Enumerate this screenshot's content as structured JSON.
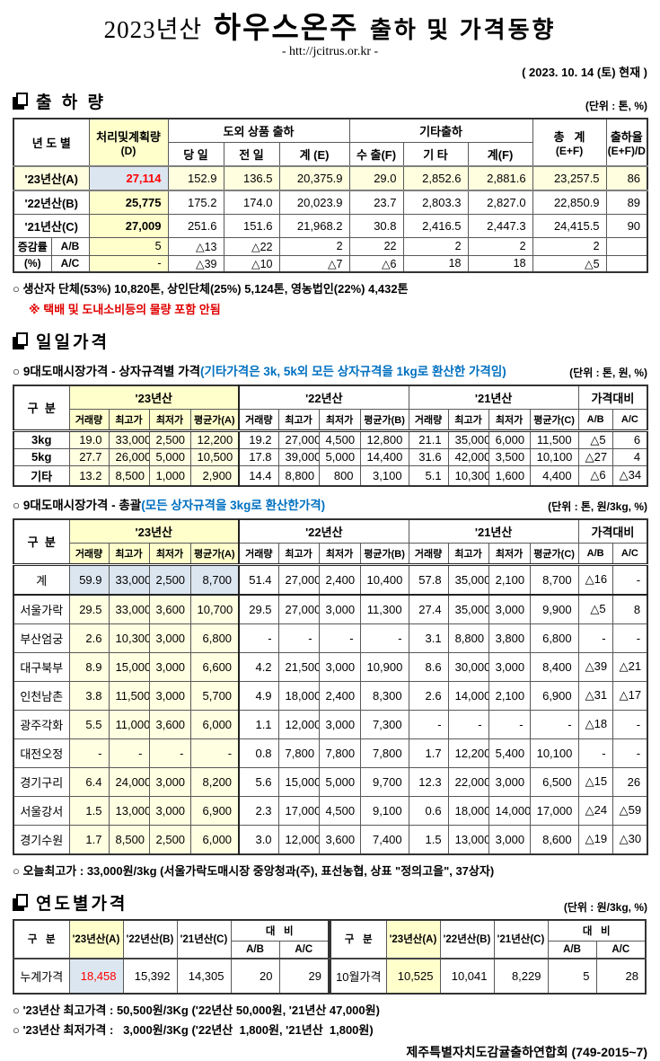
{
  "header": {
    "title_prefix": "2023년산",
    "title_main": "하우스온주",
    "title_suffix": "출하 및 가격동향",
    "url": "- htt://jcitrus.or.kr -",
    "asof": "( 2023. 10. 14 (토) 현재 )"
  },
  "colors": {
    "highlight_yellow": "#ffffcc",
    "pale_yellow": "#ffffe1",
    "highlight_blue": "#dce6f1",
    "red_text": "#ff0000",
    "blue_note": "#0070c0"
  },
  "shipment": {
    "title": "출 하 량",
    "unit": "(단위 : 톤, %)",
    "headers": {
      "year": "년 도 별",
      "plan1": "처리및계획량",
      "plan2": "(D)",
      "group_island": "도외 상품 출하",
      "today": "당 일",
      "prev": "전 일",
      "sum_e": "계 (E)",
      "group_etc": "기타출하",
      "export": "수 출(F)",
      "etc": "기 타",
      "sum_f": "계(F)",
      "total1": "총   계",
      "total2": "(E+F)",
      "rate1": "출하율",
      "rate2": "(E+F)/D"
    },
    "rows": [
      [
        "'23년산(A)",
        "27,114",
        "152.9",
        "136.5",
        "20,375.9",
        "29.0",
        "2,852.6",
        "2,881.6",
        "23,257.5",
        "86"
      ],
      [
        "'22년산(B)",
        "25,775",
        "175.2",
        "174.0",
        "20,023.9",
        "23.7",
        "2,803.3",
        "2,827.0",
        "22,850.9",
        "89"
      ],
      [
        "'21년산(C)",
        "27,009",
        "251.6",
        "151.6",
        "21,968.2",
        "30.8",
        "2,416.5",
        "2,447.3",
        "24,415.5",
        "90"
      ]
    ],
    "change_rows": [
      [
        "증감률",
        "A/B",
        "5",
        "△13",
        "△22",
        "2",
        "22",
        "2",
        "2",
        "2",
        ""
      ],
      [
        "(%)",
        "A/C",
        "-",
        "△39",
        "△10",
        "△7",
        "△6",
        "18",
        "18",
        "△5",
        ""
      ]
    ],
    "note1": "○ 생산자 단체(53%) 10,820톤, 상인단체(25%) 5,124톤, 영농법인(22%) 4,432톤",
    "note2": "※ 택배 및 도내소비등의 물량 포함 안됨"
  },
  "daily": {
    "title": "일일가격",
    "sub1_label": "○ 9대도매시장가격 - 상자규격별 가격",
    "sub1_note": "(기타가격은 3k, 5k외 모든 상자규격을 1kg로 환산한 가격임)",
    "sub1_unit": "(단위 : 톤,  원, %)",
    "sub2_label": "○ 9대도매시장가격 - 총괄",
    "sub2_note": "(모든 상자규격을 3kg로 환산한가격)",
    "sub2_unit": "(단위 : 톤, 원/3kg, %)",
    "col_label": "구  분",
    "y23": "'23년산",
    "y22": "'22년산",
    "y21": "'21년산",
    "compare": "가격대비",
    "sub_headers": [
      "거래량",
      "최고가",
      "최저가",
      "평균가(A)",
      "거래량",
      "최고가",
      "최저가",
      "평균가(B)",
      "거래량",
      "최고가",
      "최저가",
      "평균가(C)",
      "A/B",
      "A/C"
    ],
    "box_rows": [
      [
        "3kg",
        "19.0",
        "33,000",
        "2,500",
        "12,200",
        "19.2",
        "27,000",
        "4,500",
        "12,800",
        "21.1",
        "35,000",
        "6,000",
        "11,500",
        "△5",
        "6"
      ],
      [
        "5kg",
        "27.7",
        "26,000",
        "5,000",
        "10,500",
        "17.8",
        "39,000",
        "5,000",
        "14,400",
        "31.6",
        "42,000",
        "3,500",
        "10,100",
        "△27",
        "4"
      ],
      [
        "기타",
        "13.2",
        "8,500",
        "1,000",
        "2,900",
        "14.4",
        "8,800",
        "800",
        "3,100",
        "5.1",
        "10,300",
        "1,600",
        "4,400",
        "△6",
        "△34"
      ]
    ],
    "total_rows": [
      [
        "계",
        "59.9",
        "33,000",
        "2,500",
        "8,700",
        "51.4",
        "27,000",
        "2,400",
        "10,400",
        "57.8",
        "35,000",
        "2,100",
        "8,700",
        "△16",
        "-"
      ],
      [
        "서울가락",
        "29.5",
        "33,000",
        "3,600",
        "10,700",
        "29.5",
        "27,000",
        "3,000",
        "11,300",
        "27.4",
        "35,000",
        "3,000",
        "9,900",
        "△5",
        "8"
      ],
      [
        "부산엄궁",
        "2.6",
        "10,300",
        "3,000",
        "6,800",
        "-",
        "-",
        "-",
        "-",
        "3.1",
        "8,800",
        "3,800",
        "6,800",
        "-",
        "-"
      ],
      [
        "대구북부",
        "8.9",
        "15,000",
        "3,000",
        "6,600",
        "4.2",
        "21,500",
        "3,000",
        "10,900",
        "8.6",
        "30,000",
        "3,000",
        "8,400",
        "△39",
        "△21"
      ],
      [
        "인천남촌",
        "3.8",
        "11,500",
        "3,000",
        "5,700",
        "4.9",
        "18,000",
        "2,400",
        "8,300",
        "2.6",
        "14,000",
        "2,100",
        "6,900",
        "△31",
        "△17"
      ],
      [
        "광주각화",
        "5.5",
        "11,000",
        "3,600",
        "6,000",
        "1.1",
        "12,000",
        "3,000",
        "7,300",
        "-",
        "-",
        "-",
        "-",
        "△18",
        "-"
      ],
      [
        "대전오정",
        "-",
        "-",
        "-",
        "-",
        "0.8",
        "7,800",
        "7,800",
        "7,800",
        "1.7",
        "12,200",
        "5,400",
        "10,100",
        "-",
        "-"
      ],
      [
        "경기구리",
        "6.4",
        "24,000",
        "3,000",
        "8,200",
        "5.6",
        "15,000",
        "5,000",
        "9,700",
        "12.3",
        "22,000",
        "3,000",
        "6,500",
        "△15",
        "26"
      ],
      [
        "서울강서",
        "1.5",
        "13,000",
        "3,000",
        "6,900",
        "2.3",
        "17,000",
        "4,500",
        "9,100",
        "0.6",
        "18,000",
        "14,000",
        "17,000",
        "△24",
        "△59"
      ],
      [
        "경기수원",
        "1.7",
        "8,500",
        "2,500",
        "6,000",
        "3.0",
        "12,000",
        "3,600",
        "7,400",
        "1.5",
        "13,000",
        "3,000",
        "8,600",
        "△19",
        "△30"
      ]
    ],
    "today_high_note": "○ 오늘최고가 : 33,000원/3kg (서울가락도매시장 중앙청과(주), 표선농협, 상표 \"정의고을\", 37상자)"
  },
  "yearly": {
    "title": "연도별가격",
    "unit": "(단위 : 원/3kg, %)",
    "headers": {
      "label": "구   분",
      "y23": "'23년산(A)",
      "y22": "'22년산(B)",
      "y21": "'21년산(C)",
      "compare": "대   비",
      "ab": "A/B",
      "ac": "A/C"
    },
    "left_rows": [
      [
        "누계가격",
        "18,458",
        "15,392",
        "14,305",
        "20",
        "29"
      ]
    ],
    "right_rows": [
      [
        "10월가격",
        "10,525",
        "10,041",
        "8,229",
        "5",
        "28"
      ]
    ],
    "note1": "○ '23년산 최고가격 : 50,500원/3Kg ('22년산 50,000원, '21년산 47,000원)",
    "note2": "○ '23년산 최저가격 :   3,000원/3Kg ('22년산  1,800원, '21년산  1,800원)"
  },
  "footer": {
    "org": "제주특별자치도감귤출하연합회 (749-2015~7)"
  }
}
